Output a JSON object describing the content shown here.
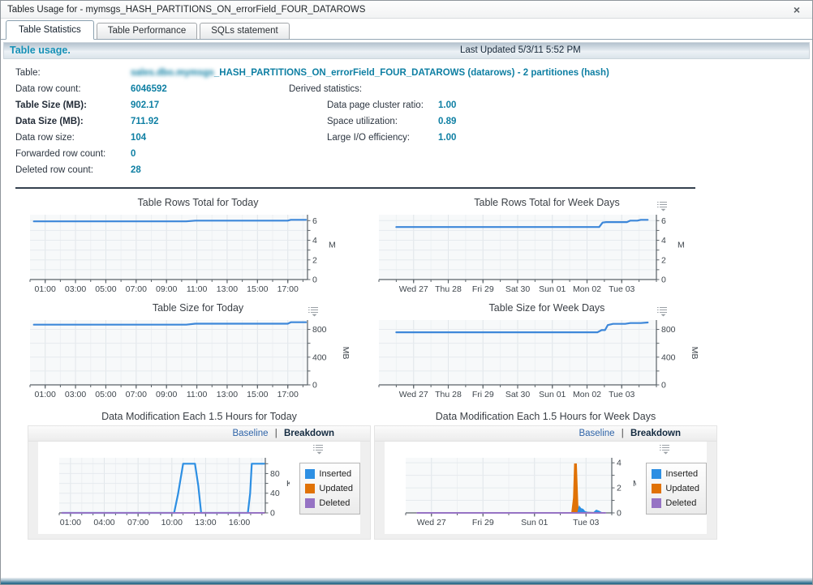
{
  "window": {
    "title": "Tables Usage for - mymsgs_HASH_PARTITIONS_ON_errorField_FOUR_DATAROWS",
    "close_icon": "×"
  },
  "tabs": [
    {
      "label": "Table Statistics",
      "active": true
    },
    {
      "label": "Table Performance",
      "active": false
    },
    {
      "label": "SQLs statement",
      "active": false
    }
  ],
  "usage_header": {
    "title": "Table usage.",
    "last_updated": "Last Updated 5/3/11 5:52 PM"
  },
  "stats": {
    "table_label": "Table:",
    "table_name_redacted": "sales.dbo.mymsgs",
    "table_name": "_HASH_PARTITIONS_ON_errorField_FOUR_DATAROWS (datarows) - 2 partitiones (hash)",
    "rows": [
      {
        "label": "Data row count:",
        "value": "6046592"
      },
      {
        "label": "Table Size (MB):",
        "value": "902.17"
      },
      {
        "label": "Data Size (MB):",
        "value": "711.92"
      },
      {
        "label": "Data row size:",
        "value": "104"
      },
      {
        "label": "Forwarded row count:",
        "value": "0"
      },
      {
        "label": "Deleted row count:",
        "value": "28"
      }
    ],
    "derived": {
      "title": "Derived statistics:",
      "rows": [
        {
          "label": "Data page cluster ratio:",
          "value": "1.00"
        },
        {
          "label": "Space utilization:",
          "value": "0.89"
        },
        {
          "label": "Large I/O efficiency:",
          "value": "1.00"
        }
      ]
    }
  },
  "panels": {
    "baseline": "Baseline",
    "separator": "|",
    "breakdown": "Breakdown"
  },
  "mod_legend": [
    {
      "label": "Inserted",
      "color": "#2d8fe3"
    },
    {
      "label": "Updated",
      "color": "#e07206"
    },
    {
      "label": "Deleted",
      "color": "#9673c4"
    }
  ],
  "colors": {
    "value_teal": "#0e7fa3",
    "line_blue": "#3d87d9",
    "inserted_blue": "#2d8fe3",
    "updated_orange": "#e07206",
    "deleted_purple": "#9673c4",
    "header_title_teal": "#1590b6"
  },
  "chart_data": [
    {
      "type": "line",
      "title": "Table Rows Total for Today",
      "x_domain": [
        0,
        18.3
      ],
      "x_minor_step": 1,
      "x_ticks": [
        {
          "v": 1,
          "label": "01:00"
        },
        {
          "v": 3,
          "label": "03:00"
        },
        {
          "v": 5,
          "label": "05:00"
        },
        {
          "v": 7,
          "label": "07:00"
        },
        {
          "v": 9,
          "label": "09:00"
        },
        {
          "v": 11,
          "label": "11:00"
        },
        {
          "v": 13,
          "label": "13:00"
        },
        {
          "v": 15,
          "label": "15:00"
        },
        {
          "v": 17,
          "label": "17:00"
        }
      ],
      "y_domain": [
        0,
        6.6
      ],
      "y_minor_step": 1,
      "y_ticks": [
        0,
        2,
        4,
        6
      ],
      "y_unit": "M",
      "y_unit_rotated": false,
      "series": [
        {
          "name": "Table rows",
          "color": "#3d87d9",
          "width": 2.2,
          "points": [
            [
              0.25,
              5.92
            ],
            [
              10.3,
              5.92
            ],
            [
              10.9,
              6.0
            ],
            [
              17.0,
              6.0
            ],
            [
              17.2,
              6.08
            ],
            [
              18.2,
              6.08
            ]
          ]
        }
      ]
    },
    {
      "type": "line",
      "title": "Table Rows Total for Week Days",
      "x_domain": [
        0,
        8
      ],
      "x_minor_step": 0.5,
      "x_ticks": [
        {
          "v": 1,
          "label": "Wed 27"
        },
        {
          "v": 2,
          "label": "Thu 28"
        },
        {
          "v": 3,
          "label": "Fri 29"
        },
        {
          "v": 4,
          "label": "Sat 30"
        },
        {
          "v": 5,
          "label": "Sun 01"
        },
        {
          "v": 6,
          "label": "Mon 02"
        },
        {
          "v": 7,
          "label": "Tue 03"
        }
      ],
      "y_domain": [
        0,
        6.6
      ],
      "y_minor_step": 1,
      "y_ticks": [
        0,
        2,
        4,
        6
      ],
      "y_unit": "M",
      "y_unit_rotated": false,
      "series": [
        {
          "name": "Table rows",
          "color": "#3d87d9",
          "width": 2.2,
          "points": [
            [
              0.5,
              5.35
            ],
            [
              6.35,
              5.35
            ],
            [
              6.45,
              5.8
            ],
            [
              6.55,
              5.85
            ],
            [
              7.15,
              5.85
            ],
            [
              7.25,
              6.0
            ],
            [
              7.45,
              6.0
            ],
            [
              7.55,
              6.08
            ],
            [
              7.75,
              6.08
            ]
          ]
        }
      ]
    },
    {
      "type": "line",
      "title": "Table Size for Today",
      "x_domain": [
        0,
        18.3
      ],
      "x_minor_step": 1,
      "x_ticks": [
        {
          "v": 1,
          "label": "01:00"
        },
        {
          "v": 3,
          "label": "03:00"
        },
        {
          "v": 5,
          "label": "05:00"
        },
        {
          "v": 7,
          "label": "07:00"
        },
        {
          "v": 9,
          "label": "09:00"
        },
        {
          "v": 11,
          "label": "11:00"
        },
        {
          "v": 13,
          "label": "13:00"
        },
        {
          "v": 15,
          "label": "15:00"
        },
        {
          "v": 17,
          "label": "17:00"
        }
      ],
      "y_domain": [
        0,
        935
      ],
      "y_minor_step": 200,
      "y_ticks": [
        0,
        400,
        800
      ],
      "y_unit": "MB",
      "y_unit_rotated": true,
      "series": [
        {
          "name": "Table size",
          "color": "#3d87d9",
          "width": 2.2,
          "points": [
            [
              0.25,
              868
            ],
            [
              10.3,
              868
            ],
            [
              10.9,
              882
            ],
            [
              17.0,
              882
            ],
            [
              17.2,
              904
            ],
            [
              18.2,
              904
            ]
          ]
        }
      ]
    },
    {
      "type": "line",
      "title": "Table Size for Week Days",
      "x_domain": [
        0,
        8
      ],
      "x_minor_step": 0.5,
      "x_ticks": [
        {
          "v": 1,
          "label": "Wed 27"
        },
        {
          "v": 2,
          "label": "Thu 28"
        },
        {
          "v": 3,
          "label": "Fri 29"
        },
        {
          "v": 4,
          "label": "Sat 30"
        },
        {
          "v": 5,
          "label": "Sun 01"
        },
        {
          "v": 6,
          "label": "Mon 02"
        },
        {
          "v": 7,
          "label": "Tue 03"
        }
      ],
      "y_domain": [
        0,
        935
      ],
      "y_minor_step": 200,
      "y_ticks": [
        0,
        400,
        800
      ],
      "y_unit": "MB",
      "y_unit_rotated": true,
      "series": [
        {
          "name": "Table size",
          "color": "#3d87d9",
          "width": 2.2,
          "points": [
            [
              0.5,
              758
            ],
            [
              6.3,
              758
            ],
            [
              6.42,
              790
            ],
            [
              6.52,
              790
            ],
            [
              6.6,
              862
            ],
            [
              6.75,
              880
            ],
            [
              7.1,
              880
            ],
            [
              7.25,
              892
            ],
            [
              7.55,
              892
            ],
            [
              7.75,
              900
            ]
          ]
        }
      ]
    },
    {
      "type": "line",
      "title": "Data Modification Each 1.5 Hours for Today",
      "x_domain": [
        0,
        18.3
      ],
      "x_minor_step": 1,
      "x_ticks": [
        {
          "v": 1,
          "label": "01:00"
        },
        {
          "v": 4,
          "label": "04:00"
        },
        {
          "v": 7,
          "label": "07:00"
        },
        {
          "v": 10,
          "label": "10:00"
        },
        {
          "v": 13,
          "label": "13:00"
        },
        {
          "v": 16,
          "label": "16:00"
        }
      ],
      "y_domain": [
        0,
        112
      ],
      "y_minor_step": 20,
      "y_ticks": [
        0,
        40,
        80
      ],
      "y_unit": "K",
      "y_unit_rotated": false,
      "series": [
        {
          "name": "Inserted",
          "color": "#2d8fe3",
          "width": 2.2,
          "points": [
            [
              0.25,
              0
            ],
            [
              10.2,
              0
            ],
            [
              10.55,
              38
            ],
            [
              11.0,
              100
            ],
            [
              12.05,
              100
            ],
            [
              12.35,
              55
            ],
            [
              12.6,
              0
            ],
            [
              16.75,
              0
            ],
            [
              16.95,
              40
            ],
            [
              17.1,
              100
            ],
            [
              18.2,
              100
            ]
          ]
        },
        {
          "name": "Updated",
          "color": "#e07206",
          "width": 2,
          "points": [
            [
              0.25,
              0
            ],
            [
              18.2,
              0
            ]
          ]
        },
        {
          "name": "Deleted",
          "color": "#9673c4",
          "width": 2,
          "points": [
            [
              0.25,
              0
            ],
            [
              18.2,
              0
            ]
          ]
        }
      ]
    },
    {
      "type": "line",
      "title": "Data Modification Each 1.5 Hours for Week Days",
      "x_domain": [
        0,
        8
      ],
      "x_minor_step": 1,
      "x_ticks": [
        {
          "v": 1,
          "label": "Wed 27"
        },
        {
          "v": 3,
          "label": "Fri 29"
        },
        {
          "v": 5,
          "label": "Sun 01"
        },
        {
          "v": 7,
          "label": "Tue 03"
        }
      ],
      "y_domain": [
        0,
        4.4
      ],
      "y_minor_step": 1,
      "y_ticks": [
        0,
        2,
        4
      ],
      "y_unit": "M",
      "y_unit_rotated": false,
      "series": [
        {
          "name": "Updated",
          "color": "#e07206",
          "width": 1.5,
          "fill": true,
          "points": [
            [
              0.45,
              0
            ],
            [
              6.45,
              0
            ],
            [
              6.52,
              1.2
            ],
            [
              6.56,
              3.9
            ],
            [
              6.62,
              3.9
            ],
            [
              6.68,
              0.5
            ],
            [
              6.74,
              0.12
            ],
            [
              6.9,
              0.06
            ],
            [
              7.1,
              0.03
            ],
            [
              7.75,
              0
            ]
          ]
        },
        {
          "name": "Inserted",
          "color": "#2d8fe3",
          "width": 1.5,
          "fill": true,
          "points": [
            [
              0.45,
              0
            ],
            [
              6.68,
              0
            ],
            [
              6.74,
              0.5
            ],
            [
              6.8,
              0.33
            ],
            [
              6.88,
              0.28
            ],
            [
              6.95,
              0.1
            ],
            [
              7.05,
              0.04
            ],
            [
              7.3,
              0.02
            ],
            [
              7.4,
              0.2
            ],
            [
              7.5,
              0.12
            ],
            [
              7.6,
              0.02
            ],
            [
              7.75,
              0
            ]
          ]
        },
        {
          "name": "Deleted",
          "color": "#9673c4",
          "width": 2,
          "points": [
            [
              0.45,
              0
            ],
            [
              7.75,
              0
            ]
          ]
        }
      ]
    }
  ]
}
